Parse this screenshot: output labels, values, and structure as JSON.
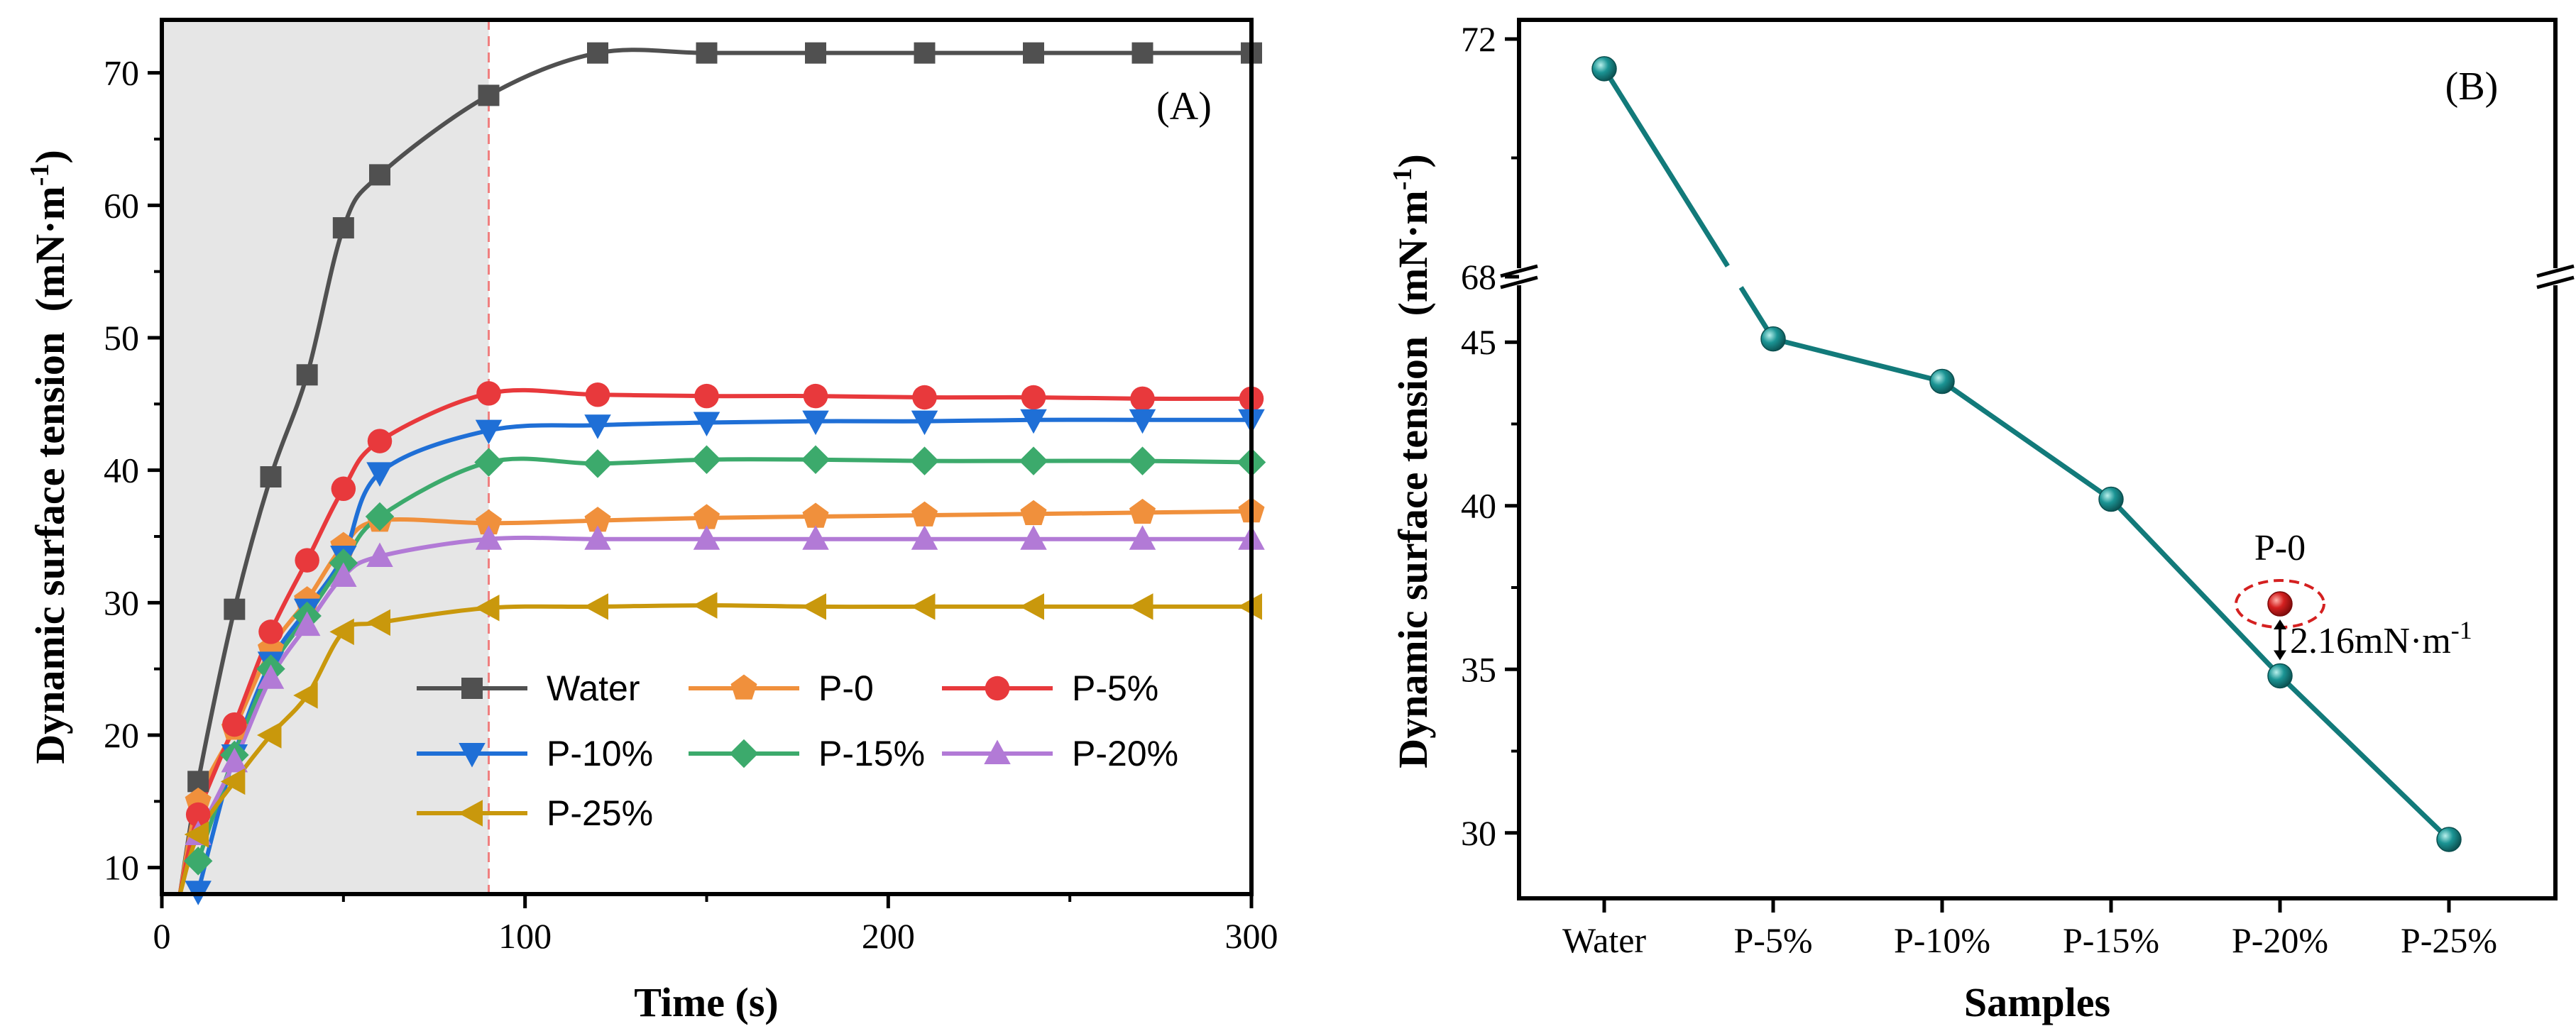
{
  "chart_data": [
    {
      "type": "line",
      "panel_label": "(A)",
      "xlabel": "Time (s)",
      "ylabel": "Dynamic surface tension",
      "ylabel_unit_base": "(mN·m",
      "ylabel_unit_exp": "-1",
      "ylabel_unit_close": ")",
      "xlim": [
        0,
        300
      ],
      "ylim": [
        8,
        74
      ],
      "xticks": [
        0,
        100,
        200,
        300
      ],
      "yticks": [
        10,
        20,
        30,
        40,
        50,
        60,
        70
      ],
      "shaded_region": [
        0,
        90
      ],
      "vline_x": 90,
      "shade_color": "#e6e6e6",
      "vline_color": "#f08080",
      "legend_position": "bottom-right",
      "series": [
        {
          "name": "Water",
          "color": "#505050",
          "marker": "square",
          "x": [
            5,
            10,
            20,
            30,
            40,
            50,
            60,
            90,
            120,
            150,
            180,
            210,
            240,
            270,
            300
          ],
          "y": [
            8,
            16.5,
            29.5,
            39.5,
            47.2,
            58.3,
            62.3,
            68.3,
            71.5,
            71.5,
            71.5,
            71.5,
            71.5,
            71.5,
            71.5
          ]
        },
        {
          "name": "P-0",
          "color": "#f0903c",
          "marker": "pentagon",
          "x": [
            5,
            10,
            20,
            30,
            40,
            50,
            60,
            90,
            120,
            150,
            180,
            210,
            240,
            270,
            300
          ],
          "y": [
            8,
            15,
            20.5,
            26.5,
            30.2,
            34.3,
            36.2,
            36.0,
            36.2,
            36.4,
            36.5,
            36.6,
            36.7,
            36.8,
            36.9
          ]
        },
        {
          "name": "P-5%",
          "color": "#e8393c",
          "marker": "circle",
          "x": [
            5,
            10,
            20,
            30,
            40,
            50,
            60,
            90,
            120,
            150,
            180,
            210,
            240,
            270,
            300
          ],
          "y": [
            8,
            14,
            20.8,
            27.8,
            33.2,
            38.6,
            42.2,
            45.8,
            45.7,
            45.6,
            45.6,
            45.5,
            45.5,
            45.4,
            45.4
          ]
        },
        {
          "name": "P-10%",
          "color": "#1f6fd6",
          "marker": "triangle-down",
          "x": [
            10,
            20,
            30,
            40,
            50,
            60,
            90,
            120,
            150,
            180,
            210,
            240,
            270,
            300
          ],
          "y": [
            8.2,
            18.5,
            25.5,
            29.5,
            33.5,
            39.8,
            43.0,
            43.4,
            43.6,
            43.7,
            43.7,
            43.8,
            43.8,
            43.8
          ]
        },
        {
          "name": "P-15%",
          "color": "#3caa6c",
          "marker": "diamond",
          "x": [
            10,
            20,
            30,
            40,
            50,
            60,
            90,
            120,
            150,
            180,
            210,
            240,
            270,
            300
          ],
          "y": [
            10.5,
            18.5,
            25.0,
            29.0,
            33.0,
            36.5,
            40.6,
            40.5,
            40.8,
            40.8,
            40.7,
            40.7,
            40.7,
            40.6
          ]
        },
        {
          "name": "P-20%",
          "color": "#b27ad6",
          "marker": "triangle-up",
          "x": [
            10,
            20,
            30,
            40,
            50,
            60,
            90,
            120,
            150,
            180,
            210,
            240,
            270,
            300
          ],
          "y": [
            12.5,
            18.0,
            24.3,
            28.3,
            32.0,
            33.5,
            34.8,
            34.8,
            34.8,
            34.8,
            34.8,
            34.8,
            34.8,
            34.8
          ]
        },
        {
          "name": "P-25%",
          "color": "#c9980c",
          "marker": "triangle-left",
          "x": [
            5,
            10,
            20,
            30,
            40,
            50,
            60,
            90,
            120,
            150,
            180,
            210,
            240,
            270,
            300
          ],
          "y": [
            8,
            12.5,
            16.5,
            20.0,
            23.0,
            27.8,
            28.5,
            29.6,
            29.7,
            29.8,
            29.7,
            29.7,
            29.7,
            29.7,
            29.7
          ]
        }
      ]
    },
    {
      "type": "line",
      "panel_label": "(B)",
      "xlabel": "Samples",
      "ylabel": "Dynamic surface tension",
      "ylabel_unit_base": "(mN·m",
      "ylabel_unit_exp": "-1",
      "ylabel_unit_close": ")",
      "categories": [
        "Water",
        "P-5%",
        "P-10%",
        "P-15%",
        "P-20%",
        "P-25%"
      ],
      "values": [
        71.5,
        45.1,
        43.8,
        40.2,
        34.8,
        29.8
      ],
      "axis_break": {
        "lower": [
          28,
          47
        ],
        "upper": [
          68,
          72
        ]
      },
      "yticks_lower": [
        30,
        35,
        40,
        45
      ],
      "yticks_upper": [
        68,
        72
      ],
      "line_color": "#127a7a",
      "highlight": {
        "label": "P-0",
        "category": "P-20%",
        "value": 37.0,
        "color": "#d42020"
      },
      "annotation_base": "2.16mN·m",
      "annotation_exp": "-1"
    }
  ]
}
